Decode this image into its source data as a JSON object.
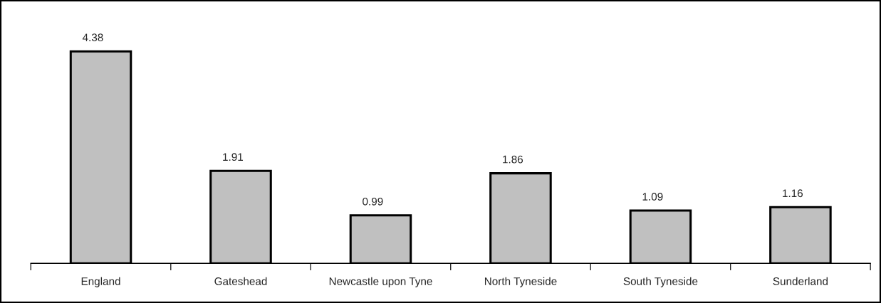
{
  "chart_data": {
    "type": "bar",
    "categories": [
      "England",
      "Gateshead",
      "Newcastle upon Tyne",
      "North Tyneside",
      "South Tyneside",
      "Sunderland"
    ],
    "values": [
      4.38,
      1.91,
      0.99,
      1.86,
      1.09,
      1.16
    ],
    "color": "#c0c0c0",
    "data_labels": true,
    "grid": false,
    "legend": false
  }
}
